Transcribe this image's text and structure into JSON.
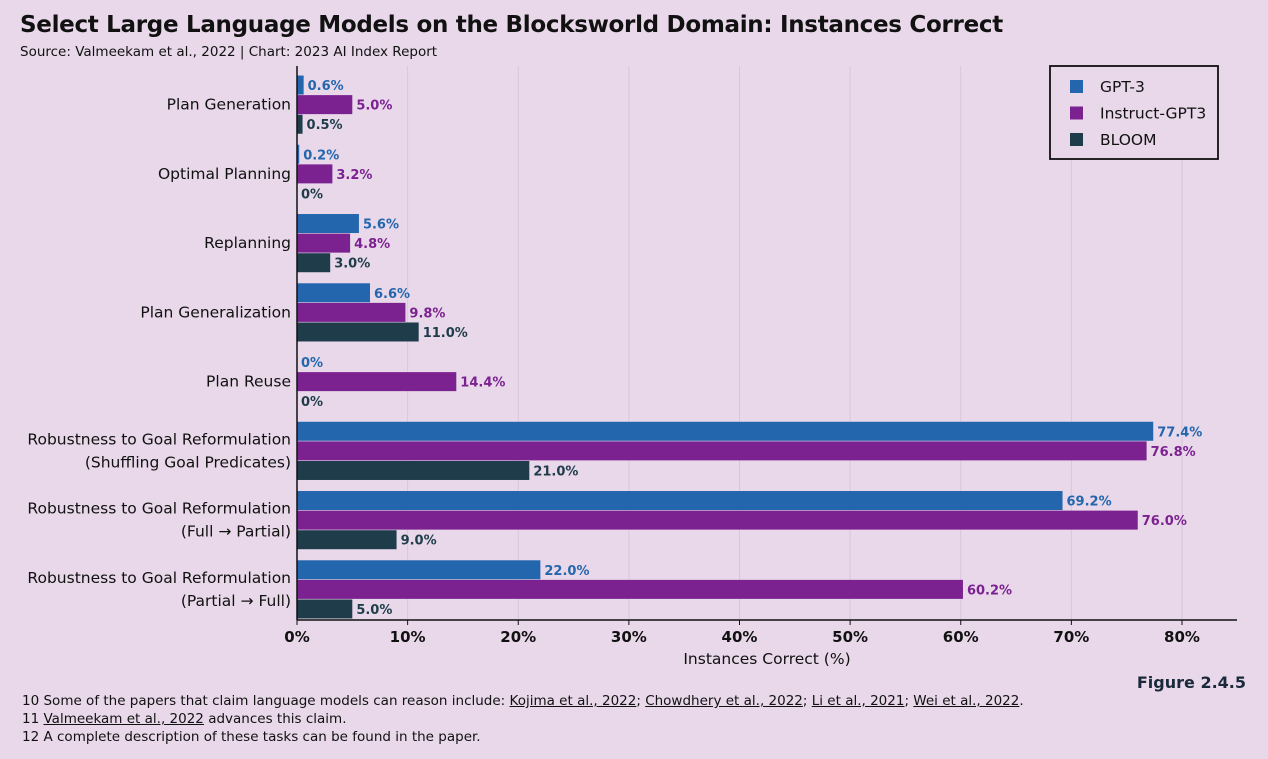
{
  "chart_data": {
    "type": "bar",
    "orientation": "horizontal",
    "title": "Select Large Language Models on the Blocksworld Domain: Instances Correct",
    "subtitle": "Source: Valmeekam et al., 2022 | Chart: 2023 AI Index Report",
    "xlabel": "Instances Correct (%)",
    "xlim": [
      0,
      85
    ],
    "xticks": [
      0,
      10,
      20,
      30,
      40,
      50,
      60,
      70,
      80
    ],
    "xtick_labels": [
      "0%",
      "10%",
      "20%",
      "30%",
      "40%",
      "50%",
      "60%",
      "70%",
      "80%"
    ],
    "grid": "vertical",
    "legend_position": "top-right",
    "categories": [
      [
        "Plan Generation"
      ],
      [
        "Optimal Planning"
      ],
      [
        "Replanning"
      ],
      [
        "Plan Generalization"
      ],
      [
        "Plan Reuse"
      ],
      [
        "Robustness to Goal Reformulation",
        "(Shuffling Goal Predicates)"
      ],
      [
        "Robustness to Goal Reformulation",
        "(Full → Partial)"
      ],
      [
        "Robustness to Goal Reformulation",
        "(Partial → Full)"
      ]
    ],
    "series": [
      {
        "name": "GPT-3",
        "color": "#2466ae",
        "values": [
          0.6,
          0.2,
          5.6,
          6.6,
          0,
          77.4,
          69.2,
          22.0
        ],
        "labels": [
          "0.6%",
          "0.2%",
          "5.6%",
          "6.6%",
          "0%",
          "77.4%",
          "69.2%",
          "22.0%"
        ]
      },
      {
        "name": "Instruct-GPT3",
        "color": "#7b2290",
        "values": [
          5.0,
          3.2,
          4.8,
          9.8,
          14.4,
          76.8,
          76.0,
          60.2
        ],
        "labels": [
          "5.0%",
          "3.2%",
          "4.8%",
          "9.8%",
          "14.4%",
          "76.8%",
          "76.0%",
          "60.2%"
        ]
      },
      {
        "name": "BLOOM",
        "color": "#1f3c4a",
        "values": [
          0.5,
          0,
          3.0,
          11.0,
          0,
          21.0,
          9.0,
          5.0
        ],
        "labels": [
          "0.5%",
          "0%",
          "3.0%",
          "11.0%",
          "0%",
          "21.0%",
          "9.0%",
          "5.0%"
        ]
      }
    ]
  },
  "figure_label": "Figure 2.4.5",
  "footnotes": [
    {
      "number": "10",
      "text": "Some of the papers that claim language models can reason include:",
      "refs": [
        "Kojima et al., 2022",
        "Chowdhery et al., 2022",
        "Li et al., 2021",
        "Wei et al., 2022"
      ],
      "end": "."
    },
    {
      "number": "11",
      "ref": "Valmeekam et al., 2022",
      "text": "advances this claim."
    },
    {
      "number": "12",
      "text": "A complete description of these tasks can be found in the paper."
    }
  ]
}
